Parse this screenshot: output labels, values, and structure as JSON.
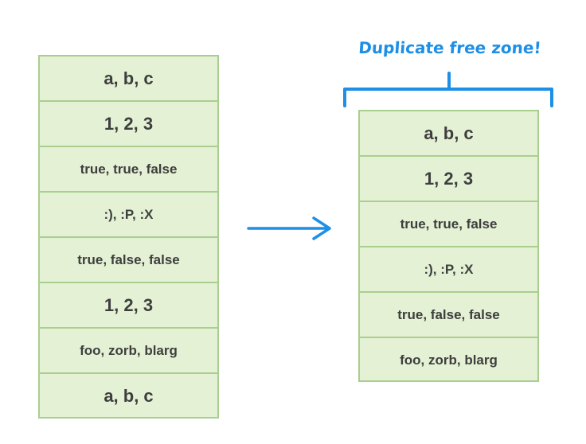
{
  "left_stack": {
    "items": [
      {
        "text": "a, b, c",
        "size": "big"
      },
      {
        "text": "1, 2, 3",
        "size": "big"
      },
      {
        "text": "true, true, false",
        "size": "small"
      },
      {
        "text": ":), :P, :X",
        "size": "small"
      },
      {
        "text": "true, false, false",
        "size": "small"
      },
      {
        "text": "1, 2, 3",
        "size": "big"
      },
      {
        "text": "foo, zorb, blarg",
        "size": "small"
      },
      {
        "text": "a, b, c",
        "size": "big"
      }
    ]
  },
  "right_stack": {
    "title": "Duplicate free zone!",
    "items": [
      {
        "text": "a, b, c",
        "size": "big"
      },
      {
        "text": "1, 2, 3",
        "size": "big"
      },
      {
        "text": "true, true, false",
        "size": "small"
      },
      {
        "text": ":), :P, :X",
        "size": "small"
      },
      {
        "text": "true, false, false",
        "size": "small"
      },
      {
        "text": "foo, zorb, blarg",
        "size": "small"
      }
    ]
  },
  "colors": {
    "cell_fill": "#e4f1d4",
    "cell_border": "#a9cf8f",
    "accent": "#1d8fe6",
    "text": "#3e3e3e"
  }
}
